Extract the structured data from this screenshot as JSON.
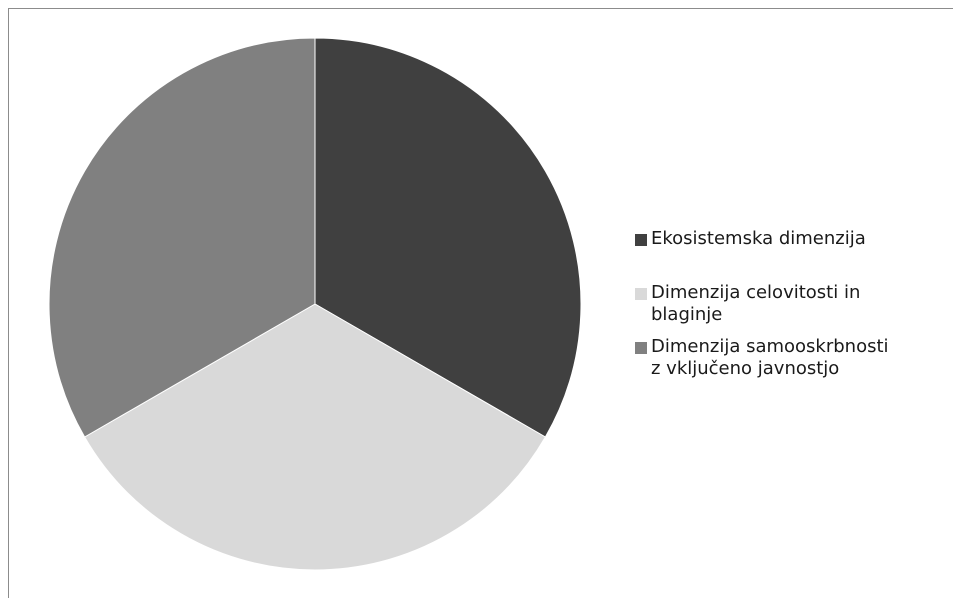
{
  "chart_data": {
    "type": "pie",
    "categories": [
      "Ekosistemska dimenzija",
      "Dimenzija celovitosti in blaginje",
      "Dimenzija samooskrbnosti z vključeno javnostjo"
    ],
    "values": [
      1,
      1,
      1
    ],
    "colors": [
      "#404040",
      "#d9d9d9",
      "#808080"
    ],
    "legend": {
      "position": "right",
      "lines": [
        [
          "Ekosistemska dimenzija"
        ],
        [
          "Dimenzija celovitosti in",
          "blaginje"
        ],
        [
          "Dimenzija samooskrbnosti",
          "z vključeno javnostjo"
        ]
      ]
    }
  }
}
